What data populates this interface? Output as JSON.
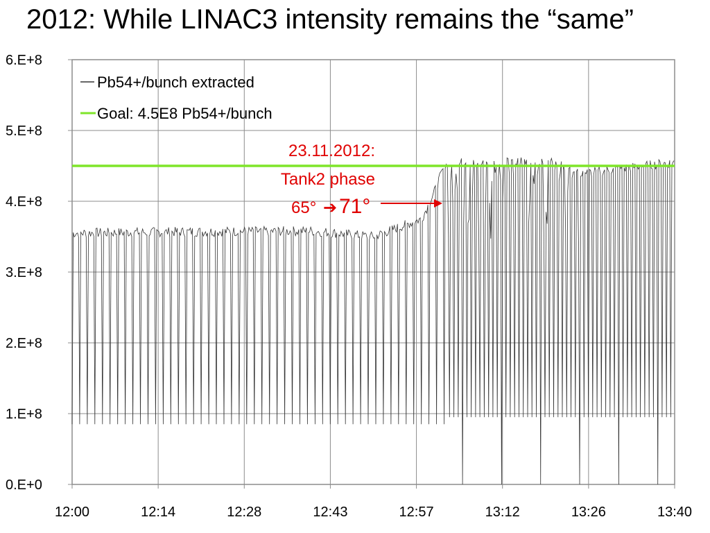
{
  "slide": {
    "title": "2012: While LINAC3 intensity remains the “same”"
  },
  "chart_data": {
    "type": "line",
    "title": "",
    "xlabel": "",
    "ylabel": "",
    "x_tick_labels": [
      "12:00",
      "12:14",
      "12:28",
      "12:43",
      "12:57",
      "13:12",
      "13:26",
      "13:40"
    ],
    "y_tick_labels": [
      "0.E+0",
      "1.E+8",
      "2.E+8",
      "3.E+8",
      "4.E+8",
      "5.E+8",
      "6.E+8"
    ],
    "xlim": [
      "12:00",
      "13:40"
    ],
    "ylim": [
      0,
      600000000
    ],
    "grid": true,
    "legend_position": "top-left",
    "series": [
      {
        "name": "Pb54+/bunch extracted",
        "color": "#333333",
        "description_points": {
          "x": [
            "12:00",
            "12:20",
            "12:40",
            "12:50",
            "12:58",
            "13:00",
            "13:02",
            "13:10",
            "13:20",
            "13:25",
            "13:40"
          ],
          "y": [
            355000000,
            357000000,
            358000000,
            350000000,
            375000000,
            410000000,
            455000000,
            455000000,
            455000000,
            440000000,
            455000000
          ]
        },
        "low_level_before_change": 85000000,
        "low_level_after_change": 0
      },
      {
        "name": "Goal: 4.5E8 Pb54+/bunch",
        "color": "#7fe52a",
        "constant": 450000000
      }
    ],
    "annotations": [
      {
        "line1": "23.11.2012:",
        "line2": "Tank2 phase",
        "from": "65°",
        "arrow": "➔",
        "to": "71°",
        "at_x": "13:00",
        "at_y": 405000000,
        "color": "#e00000"
      }
    ]
  }
}
